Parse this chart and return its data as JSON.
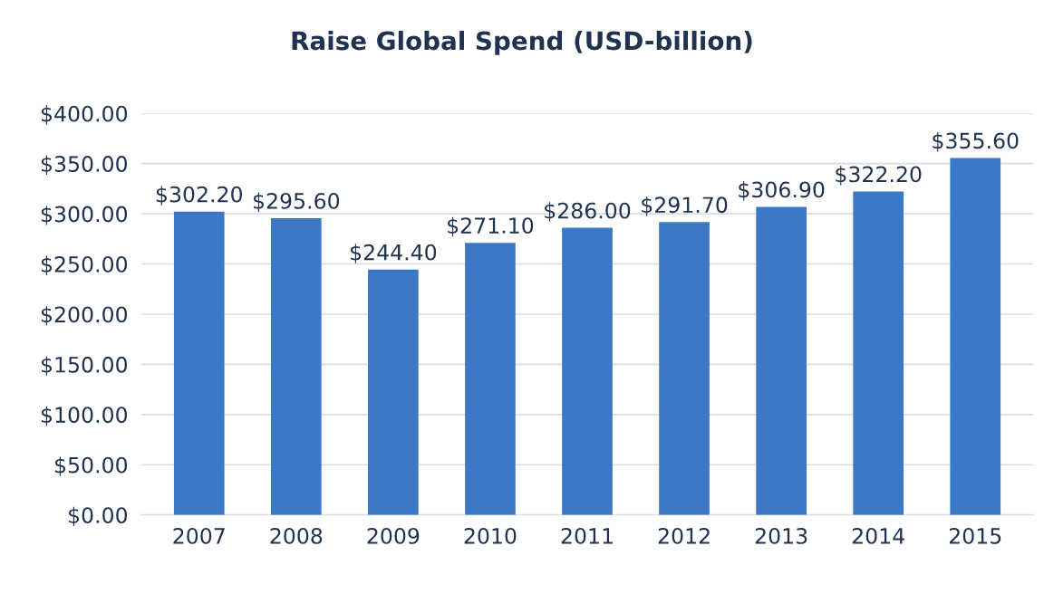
{
  "chart_data": {
    "type": "bar",
    "title": "Raise Global Spend (USD-billion)",
    "categories": [
      "2007",
      "2008",
      "2009",
      "2010",
      "2011",
      "2012",
      "2013",
      "2014",
      "2015"
    ],
    "values": [
      302.2,
      295.6,
      244.4,
      271.1,
      286.0,
      291.7,
      306.9,
      322.2,
      355.6
    ],
    "value_labels": [
      "$302.20",
      "$295.60",
      "$244.40",
      "$271.10",
      "$286.00",
      "$291.70",
      "$306.90",
      "$322.20",
      "$355.60"
    ],
    "color": "#3b78c6",
    "ylim": [
      0,
      400
    ],
    "yticks": [
      {
        "value": 0,
        "label": "$0.00"
      },
      {
        "value": 50,
        "label": "$50.00"
      },
      {
        "value": 100,
        "label": "$100.00"
      },
      {
        "value": 150,
        "label": "$150.00"
      },
      {
        "value": 200,
        "label": "$200.00"
      },
      {
        "value": 250,
        "label": "$250.00"
      },
      {
        "value": 300,
        "label": "$300.00"
      },
      {
        "value": 350,
        "label": "$350.00"
      },
      {
        "value": 400,
        "label": "$400.00"
      }
    ],
    "grid": "y"
  }
}
